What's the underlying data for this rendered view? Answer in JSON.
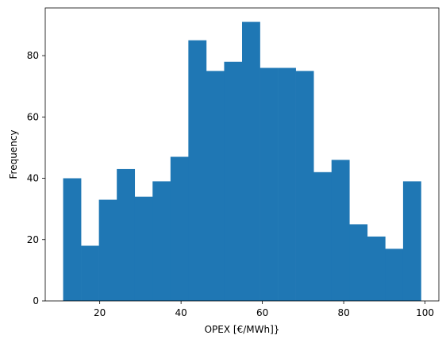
{
  "chart_data": {
    "type": "bar",
    "subtype": "histogram",
    "title": "",
    "xlabel": "OPEX [€/MWh]}",
    "ylabel": "Frequency",
    "xlim": [
      6.6,
      103.4
    ],
    "ylim": [
      0,
      95.55
    ],
    "grid": false,
    "legend": "none",
    "bar_color": "#1f77b4",
    "bins": [
      {
        "x0": 11.0,
        "x1": 15.4,
        "value": 40
      },
      {
        "x0": 15.4,
        "x1": 19.8,
        "value": 18
      },
      {
        "x0": 19.8,
        "x1": 24.2,
        "value": 33
      },
      {
        "x0": 24.2,
        "x1": 28.6,
        "value": 43
      },
      {
        "x0": 28.6,
        "x1": 33.0,
        "value": 34
      },
      {
        "x0": 33.0,
        "x1": 37.4,
        "value": 39
      },
      {
        "x0": 37.4,
        "x1": 41.8,
        "value": 47
      },
      {
        "x0": 41.8,
        "x1": 46.2,
        "value": 85
      },
      {
        "x0": 46.2,
        "x1": 50.6,
        "value": 75
      },
      {
        "x0": 50.6,
        "x1": 55.0,
        "value": 78
      },
      {
        "x0": 55.0,
        "x1": 59.4,
        "value": 91
      },
      {
        "x0": 59.4,
        "x1": 63.8,
        "value": 76
      },
      {
        "x0": 63.8,
        "x1": 68.2,
        "value": 76
      },
      {
        "x0": 68.2,
        "x1": 72.6,
        "value": 75
      },
      {
        "x0": 72.6,
        "x1": 77.0,
        "value": 42
      },
      {
        "x0": 77.0,
        "x1": 81.4,
        "value": 46
      },
      {
        "x0": 81.4,
        "x1": 85.8,
        "value": 25
      },
      {
        "x0": 85.8,
        "x1": 90.2,
        "value": 21
      },
      {
        "x0": 90.2,
        "x1": 94.6,
        "value": 17
      },
      {
        "x0": 94.6,
        "x1": 99.0,
        "value": 39
      }
    ],
    "x_ticks": [
      20,
      40,
      60,
      80,
      100
    ],
    "y_ticks": [
      0,
      20,
      40,
      60,
      80
    ]
  }
}
